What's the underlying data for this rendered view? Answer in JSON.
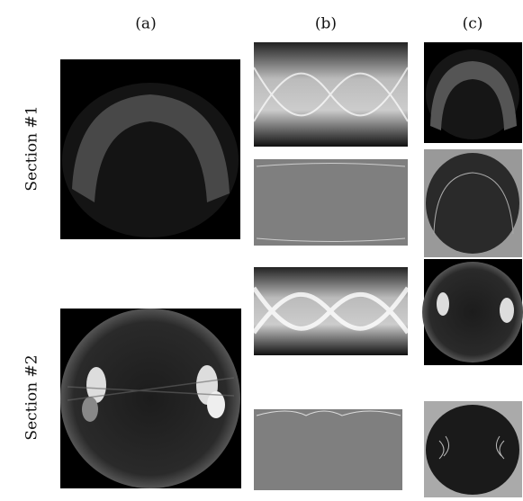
{
  "columns": [
    "(a)",
    "(b)",
    "(c)"
  ],
  "rows": [
    "Section #1",
    "Section #2"
  ]
}
